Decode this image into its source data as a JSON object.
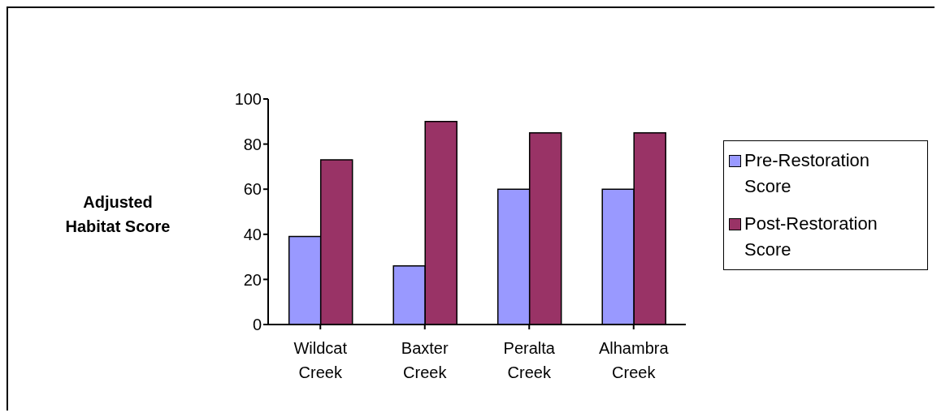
{
  "chart_data": {
    "type": "bar",
    "ylabel": "Adjusted Habitat Score",
    "categories": [
      "Wildcat Creek",
      "Baxter Creek",
      "Peralta Creek",
      "Alhambra Creek"
    ],
    "series": [
      {
        "name": "Pre-Restoration Score",
        "color": "#9999ff",
        "values": [
          39,
          26,
          60,
          60
        ]
      },
      {
        "name": "Post-Restoration Score",
        "color": "#993366",
        "values": [
          73,
          90,
          85,
          85
        ]
      }
    ],
    "ylim": [
      0,
      100
    ],
    "yticks": [
      0,
      20,
      40,
      60,
      80,
      100
    ],
    "grid": false,
    "legend": "right"
  }
}
